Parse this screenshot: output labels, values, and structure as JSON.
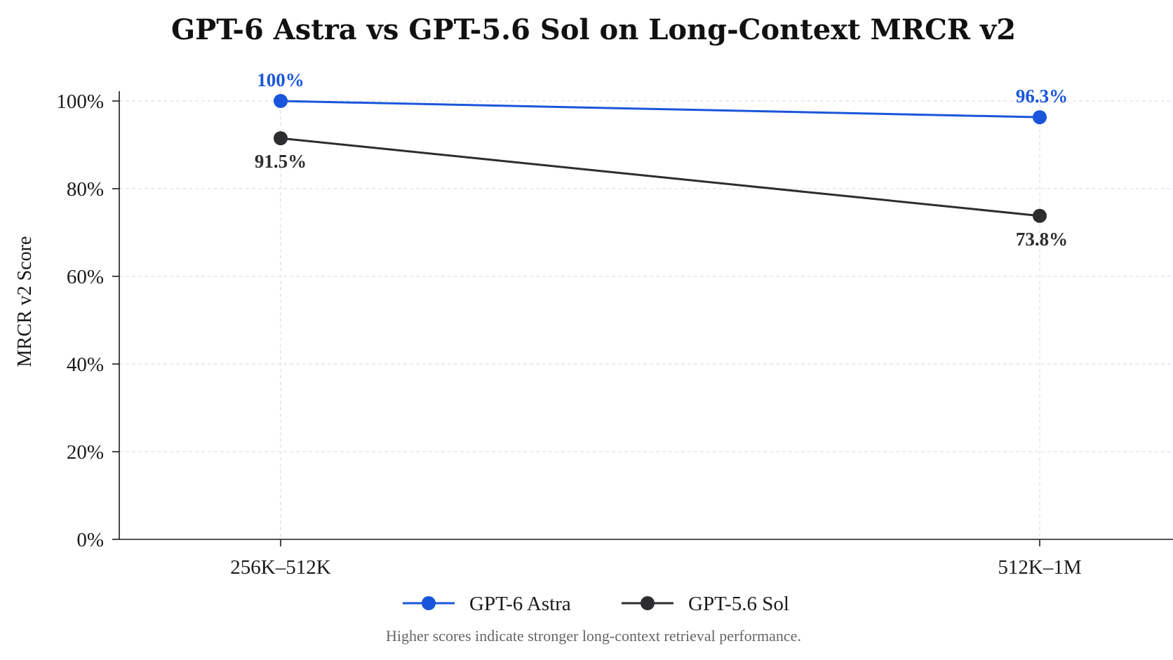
{
  "chart_data": {
    "type": "line",
    "title": "GPT-6 Astra vs GPT-5.6 Sol on Long-Context MRCR v2",
    "xlabel": "",
    "ylabel": "MRCR v2 Score",
    "categories": [
      "256K–512K",
      "512K–1M"
    ],
    "ylim": [
      0,
      100
    ],
    "yticks": [
      0,
      20,
      40,
      60,
      80,
      100
    ],
    "ytick_labels": [
      "0%",
      "20%",
      "40%",
      "60%",
      "80%",
      "100%"
    ],
    "grid": true,
    "legend_position": "bottom-center",
    "series": [
      {
        "name": "GPT-6 Astra",
        "values": [
          100,
          96.3
        ],
        "labels": [
          "100%",
          "96.3%"
        ],
        "label_position": "above",
        "color": "#1a56db"
      },
      {
        "name": "GPT-5.6 Sol",
        "values": [
          91.5,
          73.8
        ],
        "labels": [
          "91.5%",
          "73.8%"
        ],
        "label_position": "below",
        "color": "#2d2d2f"
      }
    ],
    "note": "Higher scores indicate stronger long-context retrieval performance."
  }
}
